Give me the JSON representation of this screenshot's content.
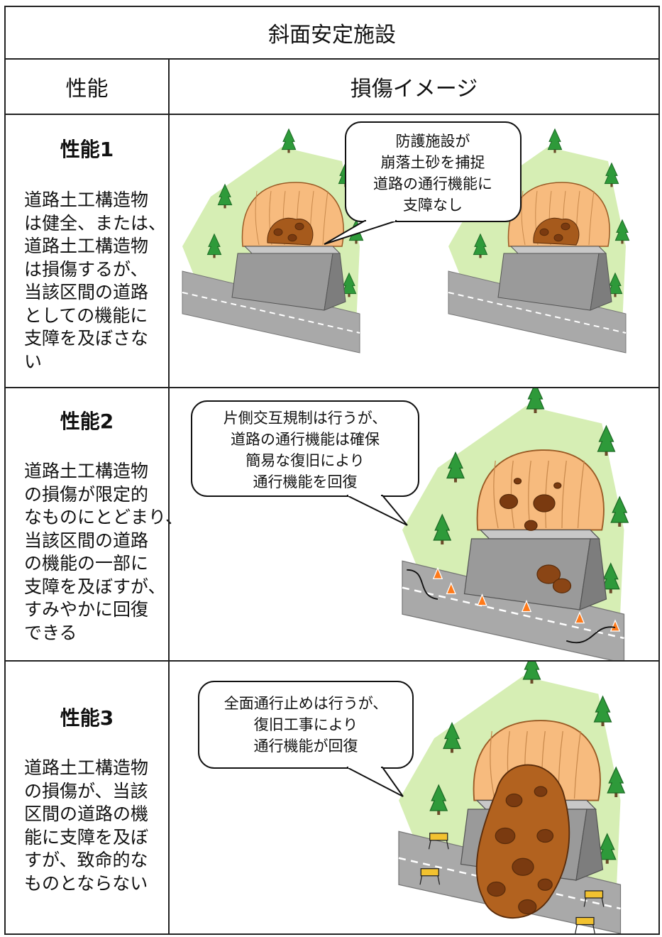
{
  "title": "斜面安定施設",
  "header": {
    "performance": "性能",
    "damage_image": "損傷イメージ"
  },
  "rows": [
    {
      "label": "性能1",
      "description": [
        "道路土工構造物",
        "は健全、または、",
        "道路土工構造物",
        "は損傷するが、",
        "当該区間の道路",
        "としての機能に",
        "支障を及ぼさな",
        "い"
      ],
      "bubble": [
        "防護施設が",
        "崩落土砂を捕捉",
        "道路の通行機能に",
        "支障なし"
      ]
    },
    {
      "label": "性能2",
      "description": [
        "道路土工構造物",
        "の損傷が限定的",
        "なものにとどまり、",
        "当該区間の道路",
        "の機能の一部に",
        "支障を及ぼすが、",
        "すみやかに回復",
        "できる"
      ],
      "bubble": [
        "片側交互規制は行うが、",
        "道路の通行機能は確保",
        "簡易な復旧により",
        "通行機能を回復"
      ]
    },
    {
      "label": "性能3",
      "description": [
        "道路土工構造物",
        "の損傷が、当該",
        "区間の道路の機",
        "能に支障を及ぼ",
        "すが、致命的な",
        "ものとならない"
      ],
      "bubble": [
        "全面通行止めは行うが、",
        "復旧工事により",
        "通行機能が回復"
      ]
    }
  ]
}
